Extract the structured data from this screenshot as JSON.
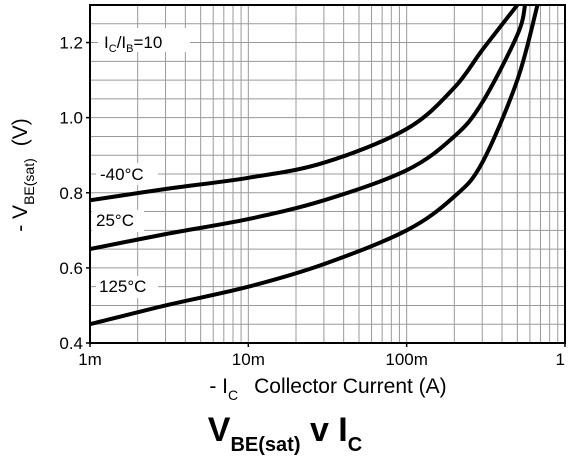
{
  "chart_data": {
    "type": "line",
    "x_scale": "log",
    "xlim": [
      0.001,
      1
    ],
    "ylim": [
      0.4,
      1.3
    ],
    "x_ticks": [
      {
        "value": 0.001,
        "label": "1m"
      },
      {
        "value": 0.01,
        "label": "10m"
      },
      {
        "value": 0.1,
        "label": "100m"
      },
      {
        "value": 1,
        "label": "1"
      }
    ],
    "y_ticks": [
      {
        "value": 0.4,
        "label": "0.4"
      },
      {
        "value": 0.6,
        "label": "0.6"
      },
      {
        "value": 0.8,
        "label": "0.8"
      },
      {
        "value": 1.0,
        "label": "1.0"
      },
      {
        "value": 1.2,
        "label": "1.2"
      }
    ],
    "grid": true,
    "xlabel": {
      "prefix": "- I",
      "sub": "C",
      "suffix": "Collector Current (A)"
    },
    "ylabel": {
      "prefix": "- V",
      "sub": "BE(sat)",
      "suffix": "(V)"
    },
    "title": {
      "main": "V",
      "sub": "BE(sat)",
      "mid": "v I",
      "sub2": "C"
    },
    "annotation": {
      "i1": "I",
      "s1": "C",
      "slash": "/I",
      "s2": "B",
      "rest": "=10"
    },
    "series": [
      {
        "name": "-40°C",
        "x": [
          0.001,
          0.003,
          0.01,
          0.03,
          0.1,
          0.2,
          0.3,
          0.5
        ],
        "y": [
          0.78,
          0.81,
          0.84,
          0.88,
          0.97,
          1.08,
          1.18,
          1.3
        ]
      },
      {
        "name": "25°C",
        "x": [
          0.001,
          0.003,
          0.01,
          0.03,
          0.1,
          0.2,
          0.3,
          0.5,
          0.56
        ],
        "y": [
          0.65,
          0.69,
          0.73,
          0.78,
          0.86,
          0.95,
          1.04,
          1.22,
          1.3
        ]
      },
      {
        "name": "125°C",
        "x": [
          0.001,
          0.003,
          0.01,
          0.03,
          0.1,
          0.2,
          0.3,
          0.5,
          0.67
        ],
        "y": [
          0.45,
          0.5,
          0.55,
          0.61,
          0.7,
          0.79,
          0.88,
          1.1,
          1.3
        ]
      }
    ]
  }
}
